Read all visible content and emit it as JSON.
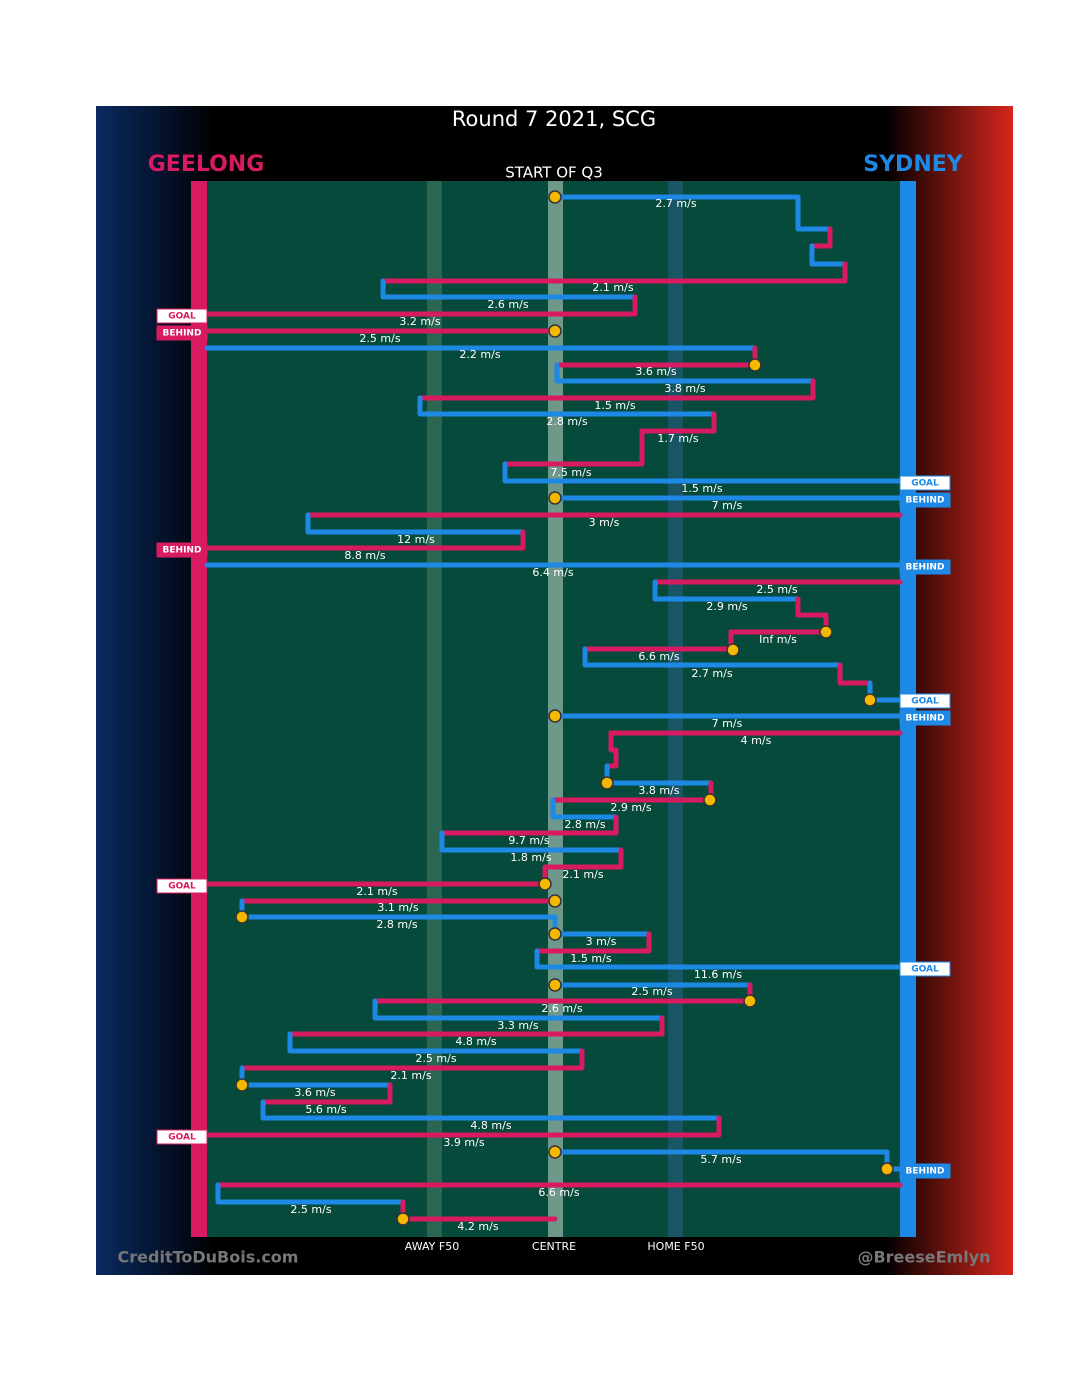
{
  "header": {
    "title": "Round 7 2021, SCG",
    "subtitle": "START OF Q3"
  },
  "teams": {
    "left": "GEELONG",
    "right": "SYDNEY"
  },
  "field_labels": [
    "AWAY F50",
    "CENTRE",
    "HOME F50"
  ],
  "credits": {
    "left": "CreditToDuBois.com",
    "right": "@BreeseEmlyn"
  },
  "outcomes": [
    "GOAL",
    "BEHIND",
    "GOAL",
    "BEHIND",
    "BEHIND",
    "BEHIND",
    "GOAL",
    "BEHIND",
    "GOAL",
    "GOAL",
    "GOAL",
    "BEHIND"
  ],
  "speeds": [
    "2.7 m/s",
    "2.1 m/s",
    "2.6 m/s",
    "3.2 m/s",
    "2.5 m/s",
    "2.2 m/s",
    "3.6 m/s",
    "3.8 m/s",
    "1.5 m/s",
    "2.8 m/s",
    "1.7 m/s",
    "7.5 m/s",
    "1.5 m/s",
    "7 m/s",
    "3 m/s",
    "12 m/s",
    "8.8 m/s",
    "6.4 m/s",
    "2.5 m/s",
    "2.9 m/s",
    "Inf m/s",
    "6.6 m/s",
    "2.7 m/s",
    "7 m/s",
    "4 m/s",
    "3.8 m/s",
    "2.9 m/s",
    "2.8 m/s",
    "9.7 m/s",
    "1.8 m/s",
    "2.1 m/s",
    "2.1 m/s",
    "3.1 m/s",
    "2.8 m/s",
    "3 m/s",
    "1.5 m/s",
    "11.6 m/s",
    "2.5 m/s",
    "2.6 m/s",
    "3.3 m/s",
    "4.8 m/s",
    "2.5 m/s",
    "2.1 m/s",
    "3.6 m/s",
    "5.6 m/s",
    "4.8 m/s",
    "3.9 m/s",
    "5.7 m/s",
    "6.6 m/s",
    "2.5 m/s",
    "4.2 m/s"
  ]
}
